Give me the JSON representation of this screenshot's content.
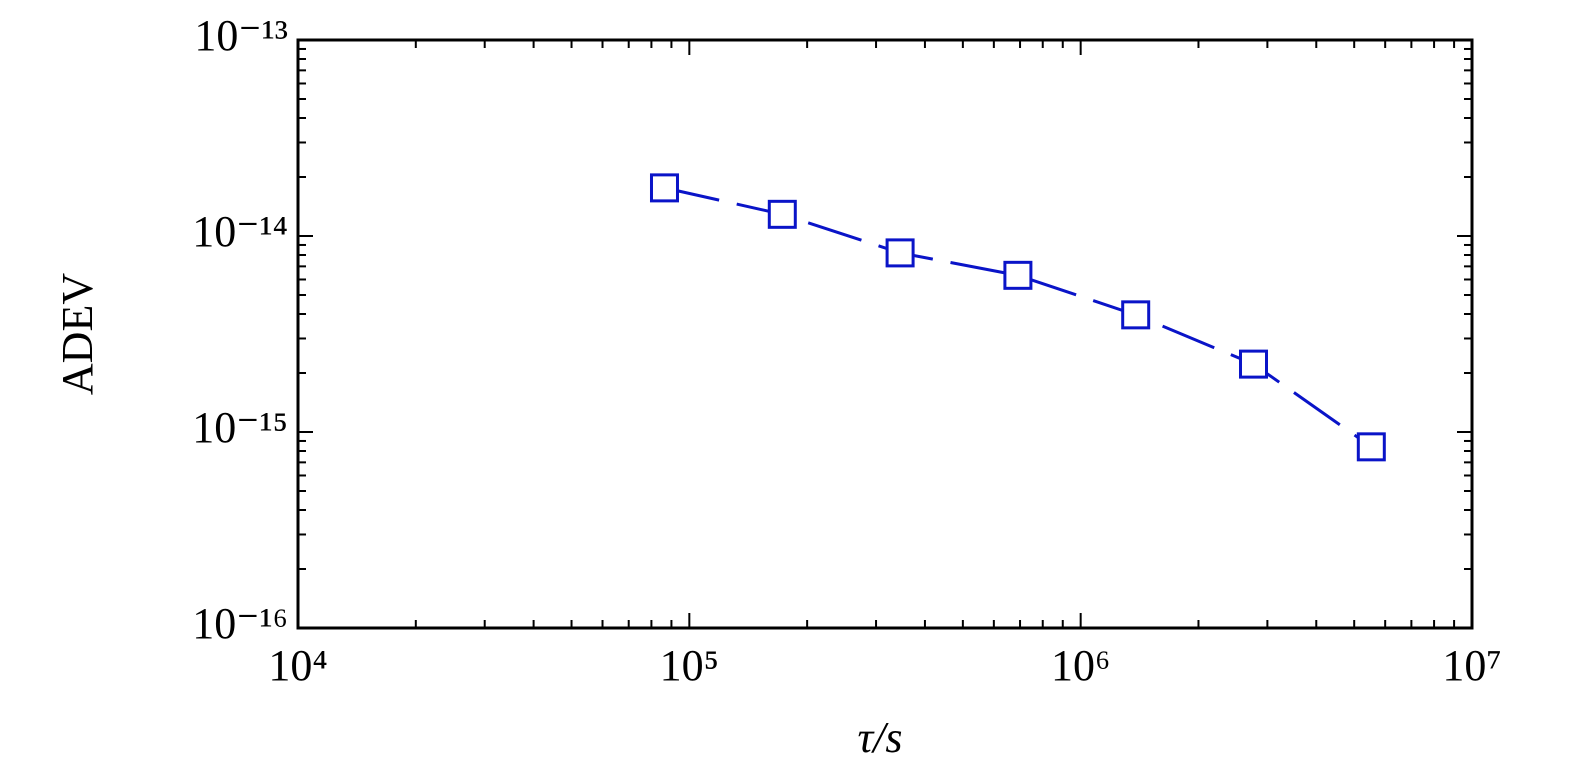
{
  "chart_data": {
    "type": "line",
    "x_label": "τ/s",
    "y_label": "ADEV",
    "x": [
      86400,
      172800,
      345600,
      691200,
      1382400,
      2764800,
      5529600
    ],
    "series": [
      {
        "color": "#0a14c8",
        "values": [
          1.76e-14,
          1.29e-14,
          8.2e-15,
          6.3e-15,
          3.96e-15,
          2.22e-15,
          8.4e-16
        ]
      }
    ],
    "xlim": [
      10000,
      10000000
    ],
    "ylim": [
      1e-16,
      1e-13
    ],
    "xticks": [
      {
        "value": 10000,
        "label": "10⁴"
      },
      {
        "value": 100000,
        "label": "10⁵"
      },
      {
        "value": 1000000,
        "label": "10⁶"
      },
      {
        "value": 10000000,
        "label": "10⁷"
      }
    ],
    "yticks": [
      {
        "value": 1e-16,
        "label": "10⁻¹⁶"
      },
      {
        "value": 1e-15,
        "label": "10⁻¹⁵"
      },
      {
        "value": 1e-14,
        "label": "10⁻¹⁴"
      },
      {
        "value": 1e-13,
        "label": "10⁻¹³"
      }
    ],
    "x_log": true,
    "y_log": true,
    "marker": "square",
    "line_style": "dashed"
  }
}
